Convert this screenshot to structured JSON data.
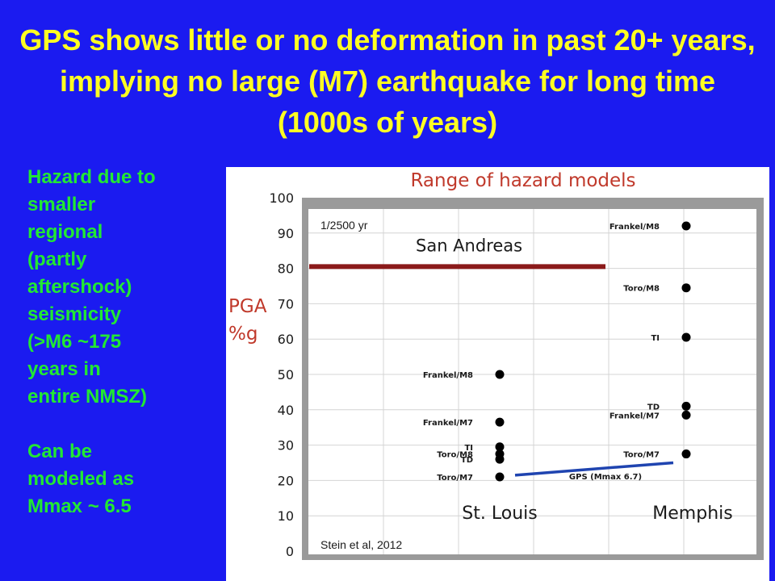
{
  "slide": {
    "title": "GPS shows little or no deformation in past 20+ years, implying no large (M7) earthquake for long time (1000s of years)",
    "side_text": [
      "Hazard due to",
      "smaller",
      "regional",
      "(partly",
      "aftershock)",
      "seismicity",
      "(>M6 ~175",
      "years in",
      "entire NMSZ)"
    ],
    "side_text_2": [
      "Can be",
      "modeled as",
      "Mmax ~ 6.5"
    ]
  },
  "colors": {
    "background": "#1b1bf0",
    "title": "#ffff22",
    "side_text": "#22e833",
    "chart_title": "#c0392b",
    "ylabel": "#c0392b",
    "san_andreas_line": "#8b1a1a",
    "gps_line": "#1f44b0",
    "points": "#000000"
  },
  "chart_data": {
    "type": "scatter",
    "title": "Range of hazard models",
    "ylabel": "PGA %g",
    "ylim": [
      0,
      100
    ],
    "yticks": [
      0,
      10,
      20,
      30,
      40,
      50,
      60,
      70,
      80,
      90,
      100
    ],
    "categories": [
      "St. Louis",
      "Memphis"
    ],
    "annotation_top": "1/2500 yr",
    "credit": "Stein et al, 2012",
    "reference_lines": [
      {
        "name": "San Andreas",
        "y": 80.5
      },
      {
        "name": "GPS (Mmax 6.7)",
        "x": [
          "St. Louis",
          "Memphis"
        ],
        "y": [
          21.5,
          25
        ]
      }
    ],
    "series": [
      {
        "category": "St. Louis",
        "points": [
          {
            "label": "Frankel/M8",
            "y": 50
          },
          {
            "label": "Frankel/M7",
            "y": 36.5
          },
          {
            "label": "TI",
            "y": 29.5
          },
          {
            "label": "Toro/M8",
            "y": 27.5
          },
          {
            "label": "TD",
            "y": 26
          },
          {
            "label": "Toro/M7",
            "y": 21
          }
        ]
      },
      {
        "category": "Memphis",
        "points": [
          {
            "label": "Frankel/M8",
            "y": 92
          },
          {
            "label": "Toro/M8",
            "y": 74.5
          },
          {
            "label": "TI",
            "y": 60.5
          },
          {
            "label": "TD",
            "y": 41
          },
          {
            "label": "Frankel/M7",
            "y": 38.5
          },
          {
            "label": "Toro/M7",
            "y": 27.5
          }
        ]
      }
    ]
  }
}
